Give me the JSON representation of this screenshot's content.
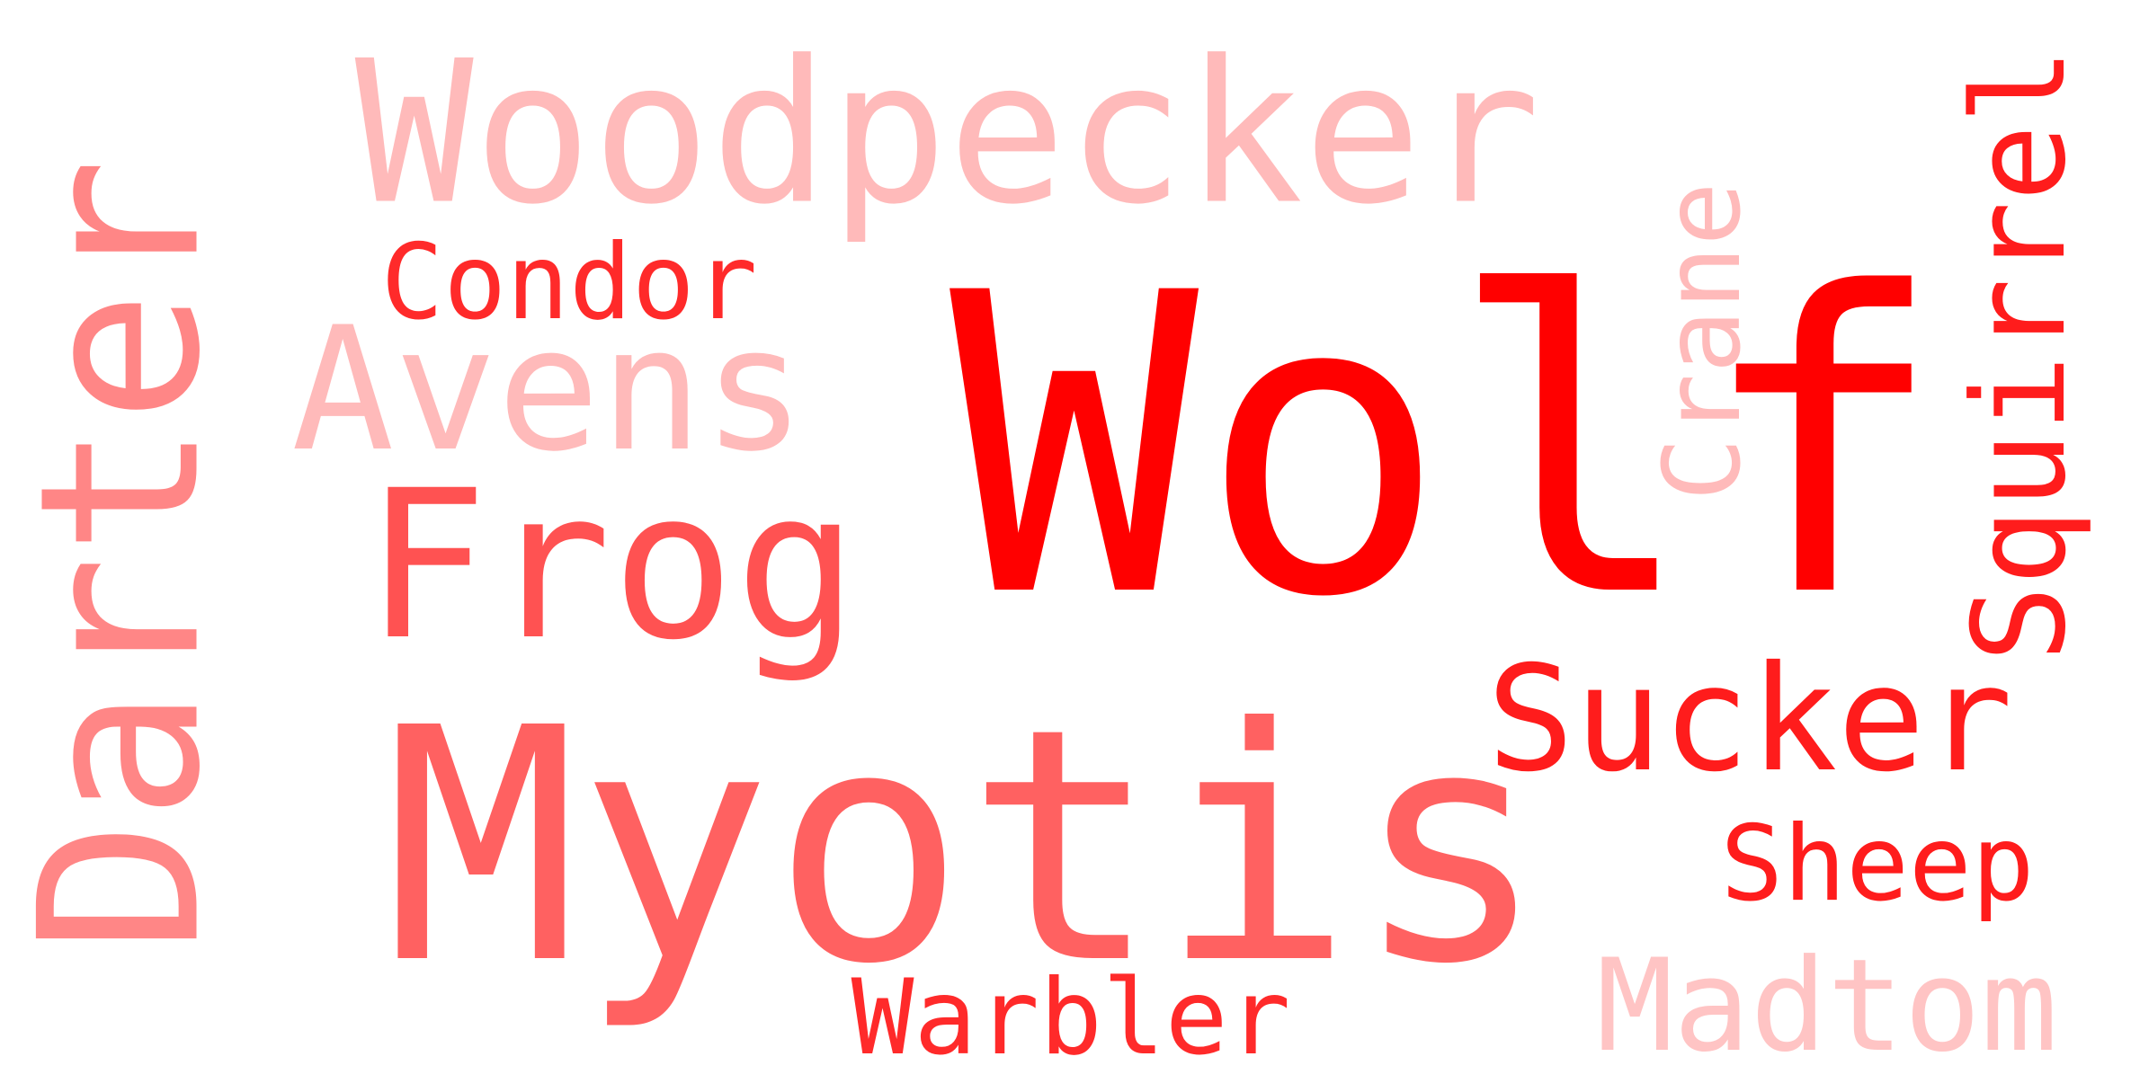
{
  "words": [
    {
      "key": "wolf",
      "text": "Wolf",
      "color": "#ff0000",
      "orientation": "horizontal"
    },
    {
      "key": "myotis",
      "text": "Myotis",
      "color": "#ff6161",
      "orientation": "horizontal"
    },
    {
      "key": "woodpecker",
      "text": "Woodpecker",
      "color": "#ffbaba",
      "orientation": "horizontal"
    },
    {
      "key": "darter",
      "text": "Darter",
      "color": "#ff8686",
      "orientation": "vertical"
    },
    {
      "key": "frog",
      "text": "Frog",
      "color": "#ff5252",
      "orientation": "horizontal"
    },
    {
      "key": "avens",
      "text": "Avens",
      "color": "#ffbaba",
      "orientation": "horizontal"
    },
    {
      "key": "sucker",
      "text": "Sucker",
      "color": "#ff1c1c",
      "orientation": "horizontal"
    },
    {
      "key": "squirrel",
      "text": "Squirrel",
      "color": "#ff1c1c",
      "orientation": "vertical"
    },
    {
      "key": "madtom",
      "text": "Madtom",
      "color": "#ffc4c4",
      "orientation": "horizontal"
    },
    {
      "key": "crane",
      "text": "Crane",
      "color": "#ffbaba",
      "orientation": "vertical"
    },
    {
      "key": "condor",
      "text": "Condor",
      "color": "#ff2a2a",
      "orientation": "horizontal"
    },
    {
      "key": "warbler",
      "text": "Warbler",
      "color": "#ff2a2a",
      "orientation": "horizontal"
    },
    {
      "key": "sheep",
      "text": "Sheep",
      "color": "#ff1c1c",
      "orientation": "horizontal"
    }
  ]
}
